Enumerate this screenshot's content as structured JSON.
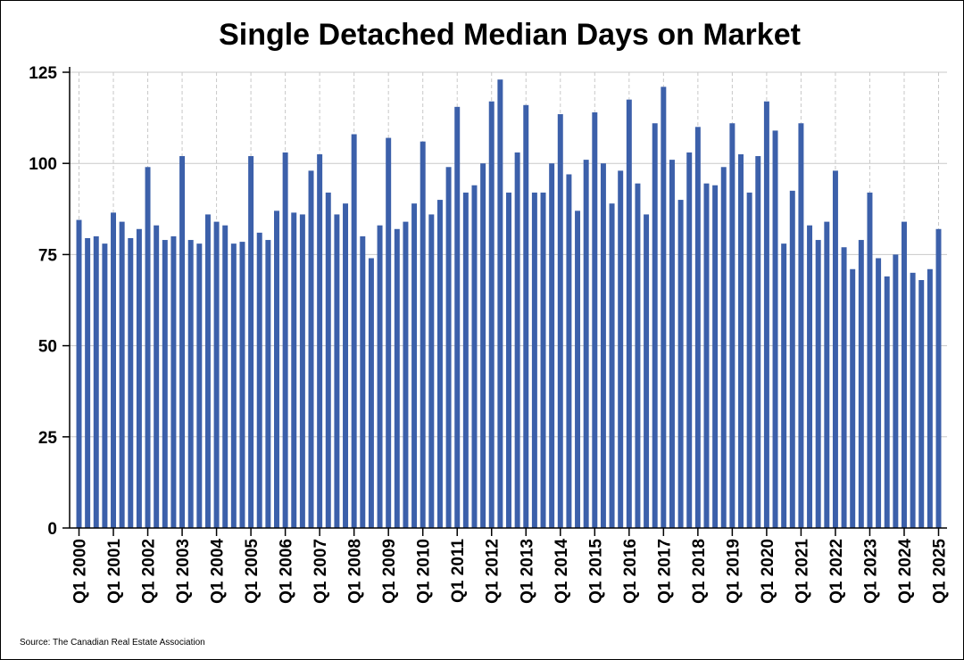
{
  "chart_data": {
    "type": "bar",
    "title": "Single Detached Median Days on Market",
    "xlabel": "",
    "ylabel": "",
    "ylim": [
      0,
      125
    ],
    "yticks": [
      0,
      25,
      50,
      75,
      100,
      125
    ],
    "x_tick_labels": [
      "Q1 2000",
      "Q1 2001",
      "Q1 2002",
      "Q1 2003",
      "Q1 2004",
      "Q1 2005",
      "Q1 2006",
      "Q1 2007",
      "Q1 2008",
      "Q1 2009",
      "Q1 2010",
      "Q1 2011",
      "Q1 2012",
      "Q1 2013",
      "Q1 2014",
      "Q1 2015",
      "Q1 2016",
      "Q1 2017",
      "Q1 2018",
      "Q1 2019",
      "Q1 2020",
      "Q1 2021",
      "Q1 2022",
      "Q1 2023",
      "Q1 2024",
      "Q1 2025"
    ],
    "categories": [
      "Q1 2000",
      "Q2 2000",
      "Q3 2000",
      "Q4 2000",
      "Q1 2001",
      "Q2 2001",
      "Q3 2001",
      "Q4 2001",
      "Q1 2002",
      "Q2 2002",
      "Q3 2002",
      "Q4 2002",
      "Q1 2003",
      "Q2 2003",
      "Q3 2003",
      "Q4 2003",
      "Q1 2004",
      "Q2 2004",
      "Q3 2004",
      "Q4 2004",
      "Q1 2005",
      "Q2 2005",
      "Q3 2005",
      "Q4 2005",
      "Q1 2006",
      "Q2 2006",
      "Q3 2006",
      "Q4 2006",
      "Q1 2007",
      "Q2 2007",
      "Q3 2007",
      "Q4 2007",
      "Q1 2008",
      "Q2 2008",
      "Q3 2008",
      "Q4 2008",
      "Q1 2009",
      "Q2 2009",
      "Q3 2009",
      "Q4 2009",
      "Q1 2010",
      "Q2 2010",
      "Q3 2010",
      "Q4 2010",
      "Q1 2011",
      "Q2 2011",
      "Q3 2011",
      "Q4 2011",
      "Q1 2012",
      "Q2 2012",
      "Q3 2012",
      "Q4 2012",
      "Q1 2013",
      "Q2 2013",
      "Q3 2013",
      "Q4 2013",
      "Q1 2014",
      "Q2 2014",
      "Q3 2014",
      "Q4 2014",
      "Q1 2015",
      "Q2 2015",
      "Q3 2015",
      "Q4 2015",
      "Q1 2016",
      "Q2 2016",
      "Q3 2016",
      "Q4 2016",
      "Q1 2017",
      "Q2 2017",
      "Q3 2017",
      "Q4 2017",
      "Q1 2018",
      "Q2 2018",
      "Q3 2018",
      "Q4 2018",
      "Q1 2019",
      "Q2 2019",
      "Q3 2019",
      "Q4 2019",
      "Q1 2020",
      "Q2 2020",
      "Q3 2020",
      "Q4 2020",
      "Q1 2021",
      "Q2 2021",
      "Q3 2021",
      "Q4 2021",
      "Q1 2022",
      "Q2 2022",
      "Q3 2022",
      "Q4 2022",
      "Q1 2023",
      "Q2 2023",
      "Q3 2023",
      "Q4 2023",
      "Q1 2024",
      "Q2 2024",
      "Q3 2024",
      "Q4 2024",
      "Q1 2025"
    ],
    "values": [
      84.5,
      79.5,
      80,
      78,
      86.5,
      84,
      79.5,
      82,
      99,
      83,
      79,
      80,
      102,
      79,
      78,
      86,
      84,
      83,
      78,
      78.5,
      102,
      81,
      79,
      87,
      103,
      86.5,
      86,
      98,
      102.5,
      92,
      86,
      89,
      108,
      80,
      74,
      83,
      107,
      82,
      84,
      89,
      106,
      86,
      90,
      99,
      115.5,
      92,
      94,
      100,
      117,
      123,
      92,
      103,
      116,
      92,
      92,
      100,
      113.5,
      97,
      87,
      101,
      114,
      100,
      89,
      98,
      117.5,
      94.5,
      86,
      111,
      121,
      101,
      90,
      103,
      110,
      94.5,
      94,
      99,
      111,
      102.5,
      92,
      102,
      117,
      109,
      78,
      92.5,
      111,
      83,
      79,
      84,
      98,
      77,
      71,
      79,
      92,
      74,
      69,
      75,
      84,
      70,
      68,
      71,
      82
    ],
    "bar_color": "#3c60aa",
    "grid": true,
    "source": "Source: The Canadian Real Estate Association"
  }
}
